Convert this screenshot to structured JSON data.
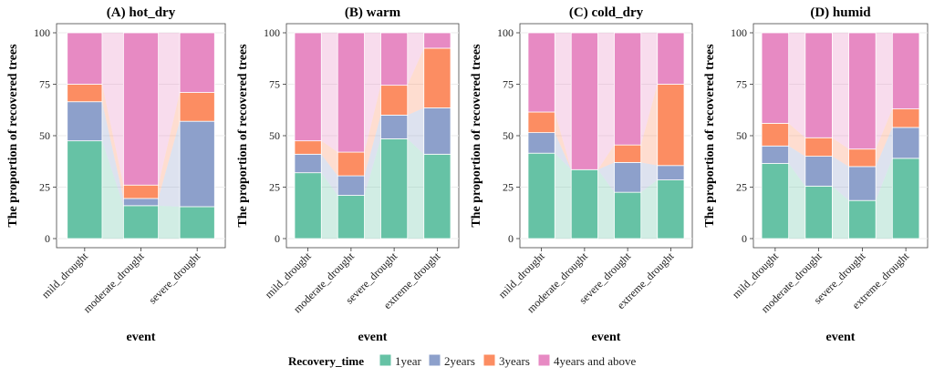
{
  "colors": {
    "1year": "#66c2a5",
    "2years": "#8da0cb",
    "3years": "#fc8d62",
    "4years and above": "#e78ac3"
  },
  "legend": {
    "title": "Recovery_time",
    "items": [
      "1year",
      "2years",
      "3years",
      "4years and above"
    ]
  },
  "chart_data": [
    {
      "type": "bar",
      "stacked": true,
      "title": "(A) hot_dry",
      "xlabel": "event",
      "ylabel": "The proportion of recovered trees",
      "ylim": [
        0,
        100
      ],
      "yticks": [
        "0",
        "25",
        "50",
        "75",
        "100"
      ],
      "categories": [
        "mild_drought",
        "moderate_drought",
        "severe_drought"
      ],
      "series": [
        {
          "name": "1year",
          "values": [
            47.5,
            16,
            15.5
          ]
        },
        {
          "name": "2years",
          "values": [
            19,
            3.5,
            41.5
          ]
        },
        {
          "name": "3years",
          "values": [
            8.5,
            6.5,
            14
          ]
        },
        {
          "name": "4years and above",
          "values": [
            25,
            74,
            29
          ]
        }
      ]
    },
    {
      "type": "bar",
      "stacked": true,
      "title": "(B) warm",
      "xlabel": "event",
      "ylabel": "The proportion of recovered trees",
      "ylim": [
        0,
        100
      ],
      "yticks": [
        "0",
        "25",
        "50",
        "75",
        "100"
      ],
      "categories": [
        "mild_drought",
        "moderate_drought",
        "severe_drought",
        "extreme_drought"
      ],
      "series": [
        {
          "name": "1year",
          "values": [
            32,
            21,
            48.5,
            41
          ]
        },
        {
          "name": "2years",
          "values": [
            9,
            9.5,
            11.5,
            22.5
          ]
        },
        {
          "name": "3years",
          "values": [
            6.5,
            11.5,
            14.5,
            29
          ]
        },
        {
          "name": "4years and above",
          "values": [
            52.5,
            58,
            25.5,
            7.5
          ]
        }
      ]
    },
    {
      "type": "bar",
      "stacked": true,
      "title": "(C) cold_dry",
      "xlabel": "event",
      "ylabel": "The proportion of recovered trees",
      "ylim": [
        0,
        100
      ],
      "yticks": [
        "0",
        "25",
        "50",
        "75",
        "100"
      ],
      "categories": [
        "mild_drought",
        "moderate_drought",
        "severe_drought",
        "extreme_drought"
      ],
      "series": [
        {
          "name": "1year",
          "values": [
            41.5,
            33.5,
            22.5,
            28.5
          ]
        },
        {
          "name": "2years",
          "values": [
            10,
            0,
            14.5,
            7
          ]
        },
        {
          "name": "3years",
          "values": [
            10,
            0,
            8.5,
            39.5
          ]
        },
        {
          "name": "4years and above",
          "values": [
            38.5,
            66.5,
            54.5,
            25
          ]
        }
      ]
    },
    {
      "type": "bar",
      "stacked": true,
      "title": "(D) humid",
      "xlabel": "event",
      "ylabel": "The proportion of recovered trees",
      "ylim": [
        0,
        100
      ],
      "yticks": [
        "0",
        "25",
        "50",
        "75",
        "100"
      ],
      "categories": [
        "mild_drought",
        "moderate_drought",
        "severe_drought",
        "extreme_drought"
      ],
      "series": [
        {
          "name": "1year",
          "values": [
            36.5,
            25.5,
            18.5,
            39
          ]
        },
        {
          "name": "2years",
          "values": [
            8.5,
            14.5,
            16.5,
            15
          ]
        },
        {
          "name": "3years",
          "values": [
            11,
            9,
            8.5,
            9
          ]
        },
        {
          "name": "4years and above",
          "values": [
            44,
            51,
            56.5,
            37
          ]
        }
      ]
    }
  ]
}
